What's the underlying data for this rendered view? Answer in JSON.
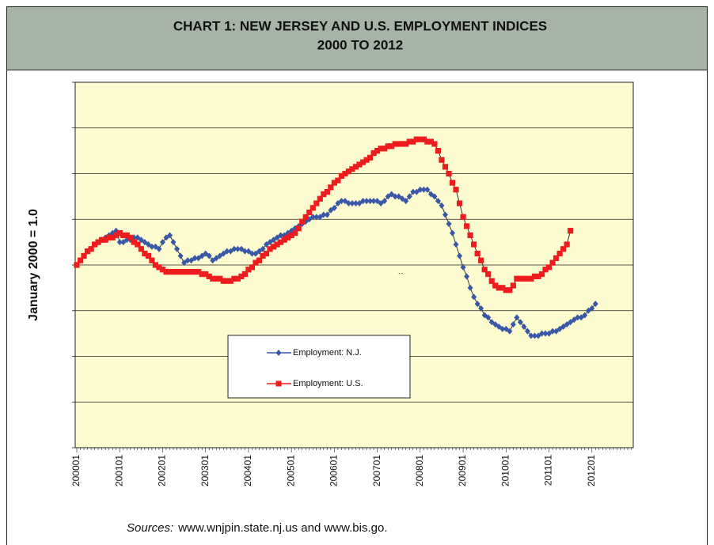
{
  "chart_data": {
    "type": "line",
    "title": "CHART 1: NEW JERSEY AND U.S. EMPLOYMENT INDICES",
    "subtitle": "2000 TO 2012",
    "y_label": "January 2000 = 1.0",
    "annotation": "``",
    "source_label": "Sources:",
    "source": "www.wnjpin.state.nj.us and www.bis.go.",
    "categories": [
      "200001",
      null,
      null,
      null,
      null,
      null,
      null,
      null,
      null,
      null,
      null,
      null,
      "200101",
      null,
      null,
      null,
      null,
      null,
      null,
      null,
      null,
      null,
      null,
      null,
      "200201",
      null,
      null,
      null,
      null,
      null,
      null,
      null,
      null,
      null,
      null,
      null,
      "200301",
      null,
      null,
      null,
      null,
      null,
      null,
      null,
      null,
      null,
      null,
      null,
      "200401",
      null,
      null,
      null,
      null,
      null,
      null,
      null,
      null,
      null,
      null,
      null,
      "200501",
      null,
      null,
      null,
      null,
      null,
      null,
      null,
      null,
      null,
      null,
      null,
      "200601",
      null,
      null,
      null,
      null,
      null,
      null,
      null,
      null,
      null,
      null,
      null,
      "200701",
      null,
      null,
      null,
      null,
      null,
      null,
      null,
      null,
      null,
      null,
      null,
      "200801",
      null,
      null,
      null,
      null,
      null,
      null,
      null,
      null,
      null,
      null,
      null,
      "200901",
      null,
      null,
      null,
      null,
      null,
      null,
      null,
      null,
      null,
      null,
      null,
      "201001",
      null,
      null,
      null,
      null,
      null,
      null,
      null,
      null,
      null,
      null,
      null,
      "201101",
      null,
      null,
      null,
      null,
      null,
      null,
      null,
      null,
      null,
      null,
      null,
      "201201",
      null,
      null,
      null,
      null,
      null,
      null,
      null,
      null,
      null,
      null,
      null
    ],
    "series": [
      {
        "name": "Employment: N.J.",
        "color": "#3857a6",
        "marker": "diamond",
        "values": [
          1.0,
          1.002,
          1.004,
          1.006,
          1.007,
          1.009,
          1.01,
          1.011,
          1.012,
          1.013,
          1.014,
          1.015,
          1.01,
          1.01,
          1.011,
          1.011,
          1.012,
          1.012,
          1.011,
          1.01,
          1.009,
          1.008,
          1.008,
          1.007,
          1.01,
          1.012,
          1.013,
          1.01,
          1.007,
          1.004,
          1.001,
          1.002,
          1.002,
          1.003,
          1.003,
          1.004,
          1.005,
          1.004,
          1.002,
          1.003,
          1.004,
          1.005,
          1.006,
          1.006,
          1.007,
          1.007,
          1.007,
          1.006,
          1.006,
          1.005,
          1.005,
          1.006,
          1.007,
          1.009,
          1.01,
          1.011,
          1.012,
          1.013,
          1.013,
          1.014,
          1.015,
          1.016,
          1.017,
          1.018,
          1.019,
          1.02,
          1.021,
          1.021,
          1.021,
          1.022,
          1.022,
          1.024,
          1.025,
          1.027,
          1.028,
          1.028,
          1.027,
          1.027,
          1.027,
          1.027,
          1.028,
          1.028,
          1.028,
          1.028,
          1.028,
          1.027,
          1.028,
          1.03,
          1.031,
          1.03,
          1.03,
          1.029,
          1.028,
          1.03,
          1.032,
          1.032,
          1.033,
          1.033,
          1.033,
          1.031,
          1.03,
          1.028,
          1.026,
          1.022,
          1.018,
          1.014,
          1.009,
          1.004,
          0.999,
          0.995,
          0.99,
          0.986,
          0.983,
          0.981,
          0.978,
          0.977,
          0.975,
          0.974,
          0.973,
          0.972,
          0.972,
          0.971,
          0.974,
          0.977,
          0.975,
          0.973,
          0.971,
          0.969,
          0.969,
          0.969,
          0.97,
          0.97,
          0.97,
          0.971,
          0.971,
          0.972,
          0.973,
          0.974,
          0.975,
          0.976,
          0.977,
          0.977,
          0.978,
          0.98,
          0.981,
          0.983,
          null,
          null,
          null,
          null,
          null,
          null,
          null,
          null,
          null,
          null
        ]
      },
      {
        "name": "Employment: U.S.",
        "color": "#ee1c1c",
        "marker": "square",
        "values": [
          1.0,
          1.002,
          1.004,
          1.006,
          1.007,
          1.009,
          1.01,
          1.011,
          1.011,
          1.012,
          1.012,
          1.013,
          1.014,
          1.013,
          1.013,
          1.012,
          1.01,
          1.009,
          1.007,
          1.005,
          1.004,
          1.002,
          1.0,
          0.999,
          0.998,
          0.997,
          0.997,
          0.997,
          0.997,
          0.997,
          0.997,
          0.997,
          0.997,
          0.997,
          0.997,
          0.996,
          0.996,
          0.995,
          0.994,
          0.994,
          0.994,
          0.993,
          0.993,
          0.993,
          0.994,
          0.994,
          0.995,
          0.996,
          0.998,
          0.999,
          1.001,
          1.002,
          1.004,
          1.005,
          1.007,
          1.008,
          1.009,
          1.01,
          1.011,
          1.012,
          1.013,
          1.014,
          1.016,
          1.019,
          1.021,
          1.023,
          1.025,
          1.027,
          1.029,
          1.031,
          1.032,
          1.034,
          1.036,
          1.037,
          1.039,
          1.04,
          1.041,
          1.042,
          1.043,
          1.044,
          1.045,
          1.046,
          1.047,
          1.049,
          1.05,
          1.051,
          1.051,
          1.052,
          1.052,
          1.053,
          1.053,
          1.053,
          1.053,
          1.054,
          1.054,
          1.055,
          1.055,
          1.055,
          1.054,
          1.054,
          1.053,
          1.05,
          1.046,
          1.043,
          1.04,
          1.036,
          1.033,
          1.027,
          1.021,
          1.017,
          1.013,
          1.009,
          1.005,
          1.002,
          0.998,
          0.996,
          0.993,
          0.991,
          0.99,
          0.99,
          0.989,
          0.989,
          0.991,
          0.994,
          0.994,
          0.994,
          0.994,
          0.994,
          0.995,
          0.995,
          0.996,
          0.998,
          0.999,
          1.001,
          1.003,
          1.005,
          1.007,
          1.009,
          1.015,
          null,
          null,
          null,
          null,
          null,
          null,
          null,
          null,
          null,
          null,
          null,
          null,
          null,
          null,
          null,
          null,
          null
        ]
      }
    ],
    "ylim": [
      0.92,
      1.08
    ],
    "yticks": [
      0.92,
      0.94,
      0.96,
      0.98,
      1.0,
      1.02,
      1.04,
      1.06,
      1.08
    ],
    "grid": true,
    "plot_color": "#fdfbd0",
    "header_color": "#a8b3a8"
  }
}
